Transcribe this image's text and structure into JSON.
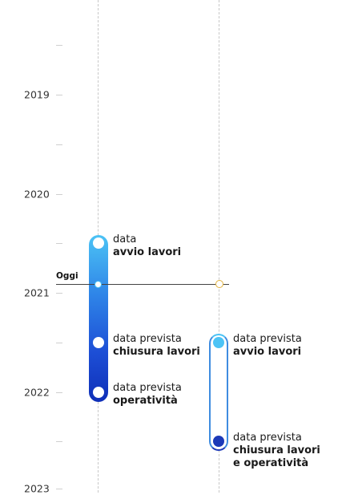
{
  "years": [
    "2019",
    "2020",
    "2021",
    "2022",
    "2023"
  ],
  "today": {
    "label": "Oggi"
  },
  "phase1": {
    "milestones": [
      {
        "prefix": "data",
        "title": "avvio lavori"
      },
      {
        "prefix": "data prevista",
        "title": "chiusura lavori"
      },
      {
        "prefix": "data prevista",
        "title": "operatività"
      }
    ],
    "colors": {
      "start": "#4cc3f5",
      "end": "#0f2fb8"
    }
  },
  "phase2": {
    "milestones": [
      {
        "prefix": "data prevista",
        "title": "avvio lavori"
      },
      {
        "prefix": "data prevista",
        "title_line1": "chiusura lavori",
        "title_line2": "e operatività"
      }
    ],
    "colors": {
      "start": "#4cc3f5",
      "end": "#1c39b8"
    }
  }
}
